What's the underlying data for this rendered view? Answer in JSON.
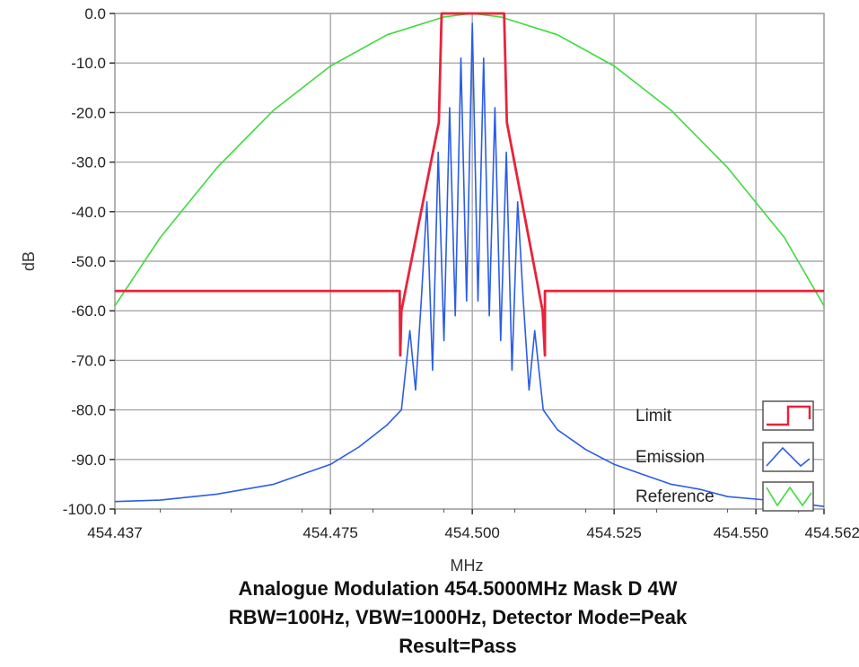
{
  "chart_data": {
    "type": "line",
    "title": "",
    "xlabel": "MHz",
    "ylabel": "dB",
    "xlim": [
      454.437,
      454.562
    ],
    "ylim": [
      -100,
      0
    ],
    "x_ticks": [
      454.437,
      454.475,
      454.5,
      454.525,
      454.55,
      454.562
    ],
    "x_tick_labels": [
      "454.437",
      "454.475",
      "454.500",
      "454.525",
      "454.550",
      "454.562"
    ],
    "y_ticks": [
      0,
      -10,
      -20,
      -30,
      -40,
      -50,
      -60,
      -70,
      -80,
      -90,
      -100
    ],
    "y_tick_labels": [
      "0.0",
      "-10.0",
      "-20.0",
      "-30.0",
      "-40.0",
      "-50.0",
      "-60.0",
      "-70.0",
      "-80.0",
      "-90.0",
      "-100.0"
    ],
    "grid": true,
    "legend": "bottom-right",
    "series": [
      {
        "name": "Limit",
        "color": "#e8233a",
        "x": [
          454.437,
          454.4872,
          454.4873,
          454.4875,
          454.4941,
          454.4941,
          454.4946,
          454.4946,
          454.5056,
          454.5056,
          454.5061,
          454.5061,
          454.5124,
          454.5128,
          454.5128,
          454.562
        ],
        "y": [
          -56,
          -56,
          -69,
          -60,
          -22,
          -22,
          0,
          0,
          0,
          0,
          -22,
          -22,
          -60,
          -69,
          -56,
          -56
        ]
      },
      {
        "name": "Emission",
        "color": "#2a5de8",
        "x": [
          454.437,
          454.445,
          454.455,
          454.465,
          454.475,
          454.48,
          454.485,
          454.4875,
          454.489,
          454.49,
          454.491,
          454.492,
          454.493,
          454.494,
          454.495,
          454.496,
          454.497,
          454.498,
          454.499,
          454.5,
          454.501,
          454.502,
          454.503,
          454.504,
          454.505,
          454.506,
          454.507,
          454.508,
          454.509,
          454.51,
          454.511,
          454.5125,
          454.515,
          454.52,
          454.525,
          454.53,
          454.535,
          454.54,
          454.545,
          454.55,
          454.555,
          454.562
        ],
        "y": [
          -98.5,
          -98.2,
          -97,
          -95,
          -91,
          -87.5,
          -83,
          -80,
          -64,
          -76,
          -58,
          -38,
          -72,
          -28,
          -66,
          -19,
          -61,
          -9,
          -58,
          -2,
          -58,
          -9,
          -61,
          -19,
          -66,
          -28,
          -72,
          -38,
          -58,
          -76,
          -64,
          -80,
          -84,
          -88,
          -91,
          -93,
          -95,
          -96,
          -97.5,
          -98,
          -98.5,
          -99.5
        ]
      },
      {
        "name": "Reference",
        "color": "#3ddc3d",
        "x": [
          454.437,
          454.445,
          454.455,
          454.465,
          454.475,
          454.485,
          454.495,
          454.5,
          454.505,
          454.515,
          454.525,
          454.535,
          454.545,
          454.555,
          454.562
        ],
        "y": [
          -59,
          -45.2,
          -31.1,
          -19.5,
          -10.6,
          -4.3,
          -0.7,
          0,
          -0.7,
          -4.3,
          -10.6,
          -19.5,
          -31.1,
          -45.2,
          -59
        ]
      }
    ]
  },
  "caption": {
    "line1": "Analogue Modulation   454.5000MHz   Mask D   4W",
    "line2": "RBW=100Hz, VBW=1000Hz, Detector Mode=Peak",
    "line3": "Result=Pass"
  }
}
